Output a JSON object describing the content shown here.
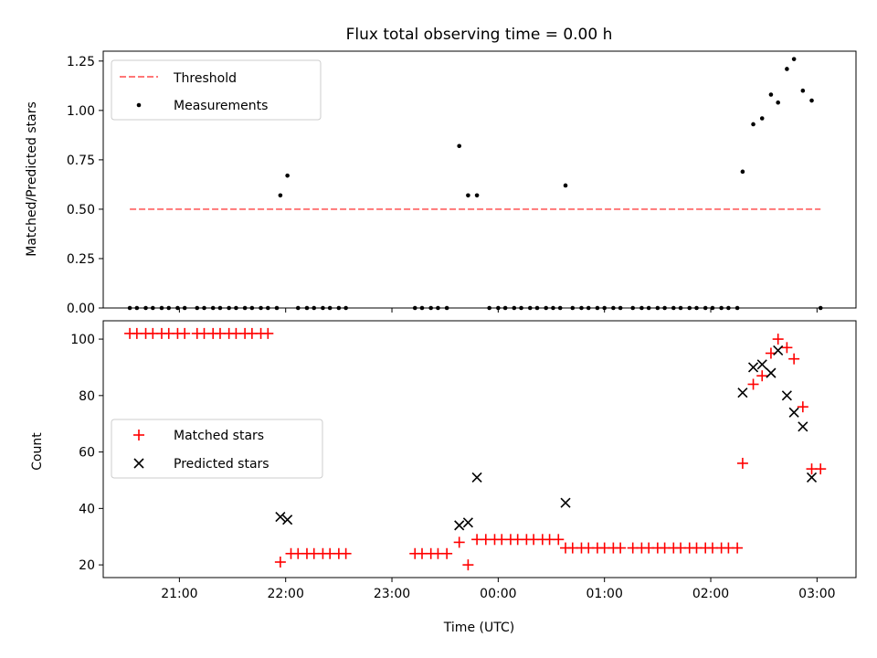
{
  "chart_data": [
    {
      "type": "scatter",
      "title": "Flux total observing time = 0.00 h",
      "xlabel": "",
      "ylabel": "Matched/Predicted stars",
      "ylim": [
        0,
        1.3
      ],
      "yticks": [
        0.0,
        0.25,
        0.5,
        0.75,
        1.0,
        1.25
      ],
      "ytick_labels": [
        "0.00",
        "0.25",
        "0.50",
        "0.75",
        "1.00",
        "1.25"
      ],
      "xlim": [
        "20:17",
        "03:22"
      ],
      "xticks": [
        "21:00",
        "22:00",
        "23:00",
        "00:00",
        "01:00",
        "02:00",
        "03:00"
      ],
      "xtick_labels": [
        "",
        "",
        "",
        "",
        "",
        "",
        ""
      ],
      "legend_position": "top-left",
      "threshold": {
        "name": "Threshold",
        "x_range": [
          "20:32",
          "03:02"
        ],
        "y": 0.5,
        "color": "#ff7777"
      },
      "series": [
        {
          "name": "Measurements",
          "color": "#000000",
          "points": [
            [
              "20:32",
              0
            ],
            [
              "20:36",
              0
            ],
            [
              "20:41",
              0
            ],
            [
              "20:45",
              0
            ],
            [
              "20:50",
              0
            ],
            [
              "20:54",
              0
            ],
            [
              "20:59",
              0
            ],
            [
              "21:03",
              0
            ],
            [
              "21:10",
              0
            ],
            [
              "21:14",
              0
            ],
            [
              "21:19",
              0
            ],
            [
              "21:23",
              0
            ],
            [
              "21:28",
              0
            ],
            [
              "21:32",
              0
            ],
            [
              "21:37",
              0
            ],
            [
              "21:41",
              0
            ],
            [
              "21:46",
              0
            ],
            [
              "21:50",
              0
            ],
            [
              "21:55",
              0
            ],
            [
              "21:57",
              0.57
            ],
            [
              "22:01",
              0.67
            ],
            [
              "22:07",
              0
            ],
            [
              "22:12",
              0
            ],
            [
              "22:16",
              0
            ],
            [
              "22:21",
              0
            ],
            [
              "22:25",
              0
            ],
            [
              "22:30",
              0
            ],
            [
              "22:34",
              0
            ],
            [
              "23:13",
              0
            ],
            [
              "23:17",
              0
            ],
            [
              "23:22",
              0
            ],
            [
              "23:26",
              0
            ],
            [
              "23:31",
              0
            ],
            [
              "23:38",
              0.82
            ],
            [
              "23:43",
              0.57
            ],
            [
              "23:48",
              0.57
            ],
            [
              "23:55",
              0
            ],
            [
              "24:00",
              0
            ],
            [
              "24:04",
              0
            ],
            [
              "24:09",
              0
            ],
            [
              "24:13",
              0
            ],
            [
              "24:18",
              0
            ],
            [
              "24:22",
              0
            ],
            [
              "24:27",
              0
            ],
            [
              "24:31",
              0
            ],
            [
              "24:35",
              0
            ],
            [
              "24:38",
              0.62
            ],
            [
              "24:42",
              0
            ],
            [
              "24:47",
              0
            ],
            [
              "24:51",
              0
            ],
            [
              "24:56",
              0
            ],
            [
              "25:00",
              0
            ],
            [
              "25:05",
              0
            ],
            [
              "25:09",
              0
            ],
            [
              "25:16",
              0
            ],
            [
              "25:21",
              0
            ],
            [
              "25:25",
              0
            ],
            [
              "25:30",
              0
            ],
            [
              "25:34",
              0
            ],
            [
              "25:39",
              0
            ],
            [
              "25:43",
              0
            ],
            [
              "25:48",
              0
            ],
            [
              "25:52",
              0
            ],
            [
              "25:57",
              0
            ],
            [
              "26:01",
              0
            ],
            [
              "26:06",
              0
            ],
            [
              "26:10",
              0
            ],
            [
              "26:15",
              0
            ],
            [
              "26:18",
              0.69
            ],
            [
              "26:24",
              0.93
            ],
            [
              "26:29",
              0.96
            ],
            [
              "26:34",
              1.08
            ],
            [
              "26:38",
              1.04
            ],
            [
              "26:43",
              1.21
            ],
            [
              "26:47",
              1.26
            ],
            [
              "26:52",
              1.1
            ],
            [
              "26:57",
              1.05
            ],
            [
              "27:02",
              0
            ]
          ]
        }
      ]
    },
    {
      "type": "scatter",
      "title": "",
      "xlabel": "Time (UTC)",
      "ylabel": "Count",
      "ylim": [
        15.5,
        106.5
      ],
      "yticks": [
        20,
        40,
        60,
        80,
        100
      ],
      "ytick_labels": [
        "20",
        "40",
        "60",
        "80",
        "100"
      ],
      "xlim": [
        "20:17",
        "03:22"
      ],
      "xticks": [
        "21:00",
        "22:00",
        "23:00",
        "00:00",
        "01:00",
        "02:00",
        "03:00"
      ],
      "xtick_labels": [
        "21:00",
        "22:00",
        "23:00",
        "00:00",
        "01:00",
        "02:00",
        "03:00"
      ],
      "legend_position": "center-left",
      "series": [
        {
          "name": "Matched stars",
          "color": "#ff0000",
          "marker": "+",
          "points": [
            [
              "20:32",
              102
            ],
            [
              "20:36",
              102
            ],
            [
              "20:41",
              102
            ],
            [
              "20:45",
              102
            ],
            [
              "20:50",
              102
            ],
            [
              "20:54",
              102
            ],
            [
              "20:59",
              102
            ],
            [
              "21:03",
              102
            ],
            [
              "21:10",
              102
            ],
            [
              "21:14",
              102
            ],
            [
              "21:19",
              102
            ],
            [
              "21:23",
              102
            ],
            [
              "21:28",
              102
            ],
            [
              "21:32",
              102
            ],
            [
              "21:37",
              102
            ],
            [
              "21:41",
              102
            ],
            [
              "21:46",
              102
            ],
            [
              "21:50",
              102
            ],
            [
              "21:57",
              21
            ],
            [
              "22:03",
              24
            ],
            [
              "22:07",
              24
            ],
            [
              "22:12",
              24
            ],
            [
              "22:16",
              24
            ],
            [
              "22:21",
              24
            ],
            [
              "22:25",
              24
            ],
            [
              "22:30",
              24
            ],
            [
              "22:34",
              24
            ],
            [
              "23:13",
              24
            ],
            [
              "23:17",
              24
            ],
            [
              "23:22",
              24
            ],
            [
              "23:26",
              24
            ],
            [
              "23:31",
              24
            ],
            [
              "23:38",
              28
            ],
            [
              "23:43",
              20
            ],
            [
              "23:48",
              29
            ],
            [
              "23:53",
              29
            ],
            [
              "23:58",
              29
            ],
            [
              "24:02",
              29
            ],
            [
              "24:07",
              29
            ],
            [
              "24:11",
              29
            ],
            [
              "24:16",
              29
            ],
            [
              "24:20",
              29
            ],
            [
              "24:25",
              29
            ],
            [
              "24:29",
              29
            ],
            [
              "24:34",
              29
            ],
            [
              "24:38",
              26
            ],
            [
              "24:42",
              26
            ],
            [
              "24:47",
              26
            ],
            [
              "24:51",
              26
            ],
            [
              "24:56",
              26
            ],
            [
              "25:00",
              26
            ],
            [
              "25:05",
              26
            ],
            [
              "25:09",
              26
            ],
            [
              "25:16",
              26
            ],
            [
              "25:21",
              26
            ],
            [
              "25:25",
              26
            ],
            [
              "25:30",
              26
            ],
            [
              "25:34",
              26
            ],
            [
              "25:39",
              26
            ],
            [
              "25:43",
              26
            ],
            [
              "25:48",
              26
            ],
            [
              "25:52",
              26
            ],
            [
              "25:57",
              26
            ],
            [
              "26:01",
              26
            ],
            [
              "26:06",
              26
            ],
            [
              "26:10",
              26
            ],
            [
              "26:15",
              26
            ],
            [
              "26:18",
              56
            ],
            [
              "26:24",
              84
            ],
            [
              "26:29",
              87
            ],
            [
              "26:34",
              95
            ],
            [
              "26:38",
              100
            ],
            [
              "26:43",
              97
            ],
            [
              "26:47",
              93
            ],
            [
              "26:52",
              76
            ],
            [
              "26:57",
              54
            ],
            [
              "27:02",
              54
            ]
          ]
        },
        {
          "name": "Predicted stars",
          "color": "#000000",
          "marker": "x",
          "points": [
            [
              "21:57",
              37
            ],
            [
              "22:01",
              36
            ],
            [
              "23:38",
              34
            ],
            [
              "23:43",
              35
            ],
            [
              "23:48",
              51
            ],
            [
              "24:38",
              42
            ],
            [
              "26:18",
              81
            ],
            [
              "26:24",
              90
            ],
            [
              "26:29",
              91
            ],
            [
              "26:34",
              88
            ],
            [
              "26:38",
              96
            ],
            [
              "26:43",
              80
            ],
            [
              "26:47",
              74
            ],
            [
              "26:52",
              69
            ],
            [
              "26:57",
              51
            ]
          ]
        }
      ]
    }
  ]
}
